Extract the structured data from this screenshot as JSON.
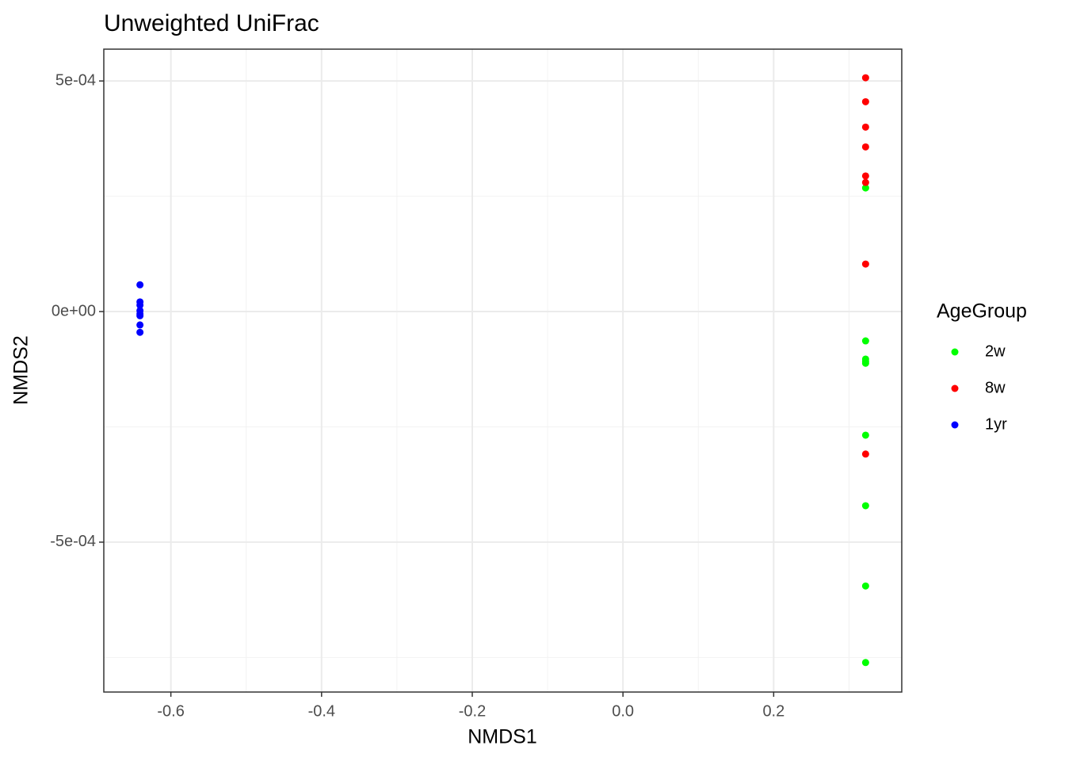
{
  "chart_data": {
    "type": "scatter",
    "title": "Unweighted UniFrac",
    "x_label": "NMDS1",
    "y_label": "NMDS2",
    "xlim": [
      -0.689,
      0.37
    ],
    "ylim": [
      -0.000825,
      0.000569
    ],
    "xticks": [
      -0.6,
      -0.4,
      -0.2,
      {
        "value": 0,
        "label": "0.0"
      },
      0.2
    ],
    "yticks": [
      {
        "value": 0.0005,
        "label": "5e-04"
      },
      {
        "value": 0,
        "label": "0e+00"
      },
      {
        "value": -0.0005,
        "label": "-5e-04"
      }
    ],
    "x_minor_grid": [
      -0.5,
      -0.3,
      -0.1,
      0.1,
      0.3
    ],
    "y_minor_grid": [
      0.00025,
      -0.00025,
      -0.00075
    ],
    "grid": true,
    "legend_title": "AgeGroup",
    "legend_position": "right",
    "series": [
      {
        "name": "2w",
        "color": "#00ff00",
        "x": [
          0.322,
          0.322,
          0.322,
          0.322,
          0.322,
          0.322,
          0.322,
          0.322,
          0.322
        ],
        "values": [
          0.000268,
          -6.36e-05,
          -0.000103,
          -0.000108,
          -0.000112,
          -0.000268,
          -0.000421,
          -0.000595,
          -0.000761
        ]
      },
      {
        "name": "8w",
        "color": "#ff0000",
        "x": [
          0.322,
          0.322,
          0.322,
          0.322,
          0.322,
          0.322,
          0.322,
          0.322
        ],
        "values": [
          0.000507,
          0.000455,
          0.0004,
          0.000357,
          0.000294,
          0.00028,
          0.000103,
          -0.000309
        ]
      },
      {
        "name": "1yr",
        "color": "#0000ff",
        "x": [
          -0.641,
          -0.641,
          -0.641,
          -0.641,
          -0.641,
          -0.641,
          -0.641,
          -0.641
        ],
        "values": [
          5.8e-05,
          2.1e-05,
          1.4e-05,
          2e-06,
          -5e-06,
          -9e-06,
          -2.9e-05,
          -4.5e-05
        ]
      }
    ]
  }
}
